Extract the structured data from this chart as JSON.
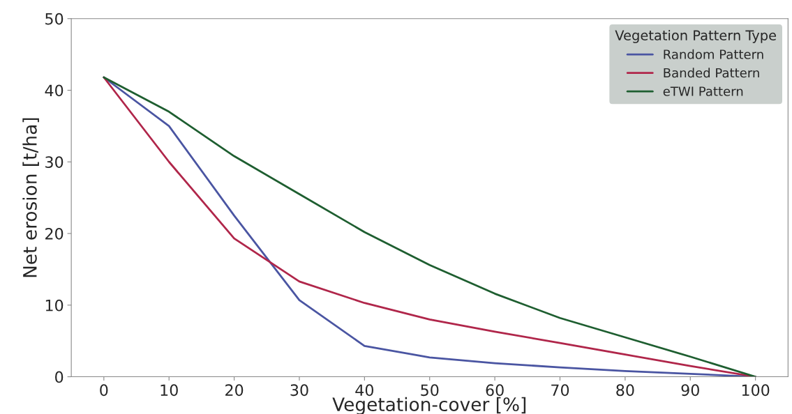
{
  "chart_data": {
    "type": "line",
    "xlabel": "Vegetation-cover [%]",
    "ylabel": "Net erosion [t/ha]",
    "legend_title": "Vegetation Pattern Type",
    "x": [
      0,
      10,
      20,
      30,
      40,
      50,
      60,
      70,
      80,
      90,
      100
    ],
    "series": [
      {
        "name": "Random Pattern",
        "color": "#4a55a2",
        "values": [
          41.8,
          35.0,
          22.5,
          10.7,
          4.3,
          2.7,
          1.9,
          1.3,
          0.8,
          0.4,
          0
        ]
      },
      {
        "name": "Banded Pattern",
        "color": "#b0264a",
        "values": [
          41.8,
          30.0,
          19.3,
          13.3,
          10.3,
          8.0,
          6.3,
          4.7,
          3.1,
          1.5,
          0
        ]
      },
      {
        "name": "eTWI Pattern",
        "color": "#1e5e30",
        "values": [
          41.8,
          37.0,
          30.8,
          25.5,
          20.2,
          15.6,
          11.6,
          8.2,
          5.5,
          2.8,
          0
        ]
      }
    ],
    "xlim": [
      -5,
      105
    ],
    "ylim": [
      0,
      50
    ],
    "xticks": [
      0,
      10,
      20,
      30,
      40,
      50,
      60,
      70,
      80,
      90,
      100
    ],
    "yticks": [
      0,
      10,
      20,
      30,
      40,
      50
    ],
    "grid": false,
    "legend": "top right",
    "marker": "none",
    "line_style": "solid"
  }
}
